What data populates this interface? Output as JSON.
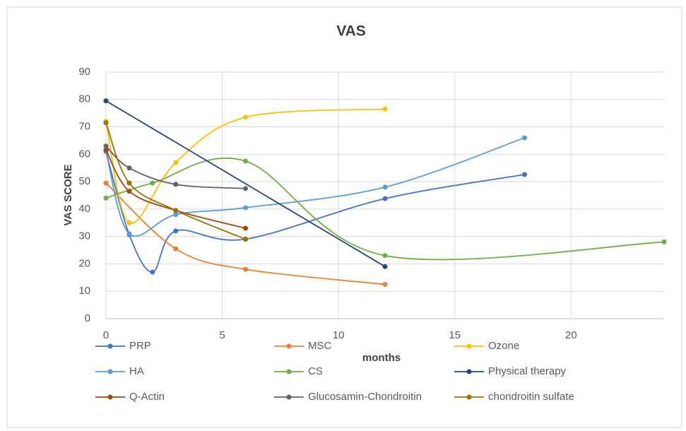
{
  "chart_data": {
    "type": "line",
    "title": "VAS",
    "x_label": "months",
    "y_label": "VAS SCORE",
    "xlim": [
      0,
      24
    ],
    "xticks": [
      0,
      5,
      10,
      15,
      20
    ],
    "ylim": [
      0,
      90
    ],
    "yticks": [
      0,
      10,
      20,
      30,
      40,
      50,
      60,
      70,
      80,
      90
    ],
    "grid": true,
    "smooth": true,
    "legend": "bottom",
    "series": [
      {
        "name": "PRP",
        "color": "#4472c4",
        "x": [
          0,
          1,
          2,
          3,
          6,
          12,
          18
        ],
        "values": [
          61,
          30.7,
          17,
          32,
          29,
          43.8,
          52.6
        ]
      },
      {
        "name": "MSC",
        "color": "#ed7d31",
        "x": [
          0,
          3,
          6,
          12
        ],
        "values": [
          49.5,
          25.5,
          18,
          12.5
        ]
      },
      {
        "name": "Ozone",
        "color": "#ffc000",
        "x": [
          0,
          1,
          3,
          6,
          12
        ],
        "values": [
          72,
          35,
          57,
          73.5,
          76.5
        ]
      },
      {
        "name": "HA",
        "color": "#5b9bd5",
        "x": [
          0,
          1,
          3,
          6,
          12,
          18
        ],
        "values": [
          61,
          31,
          38,
          40.5,
          48,
          66
        ]
      },
      {
        "name": "CS",
        "color": "#70ad47",
        "x": [
          0,
          2,
          6,
          12,
          24
        ],
        "values": [
          44,
          49.5,
          57.5,
          23,
          28
        ]
      },
      {
        "name": "Physical therapy",
        "color": "#264478",
        "x": [
          0,
          12
        ],
        "values": [
          79.5,
          19
        ]
      },
      {
        "name": "Q-Actin",
        "color": "#9e480e",
        "x": [
          0,
          1,
          3,
          6
        ],
        "values": [
          61.5,
          46.5,
          39.5,
          33
        ]
      },
      {
        "name": "Glucosamin-Chondroitin",
        "color": "#636363",
        "x": [
          0,
          1,
          3,
          6
        ],
        "values": [
          63,
          55,
          49,
          47.5
        ]
      },
      {
        "name": "chondroitin sulfate",
        "color": "#997300",
        "x": [
          0,
          1,
          3,
          6
        ],
        "values": [
          71.5,
          49.5,
          39.5,
          29
        ]
      }
    ]
  }
}
